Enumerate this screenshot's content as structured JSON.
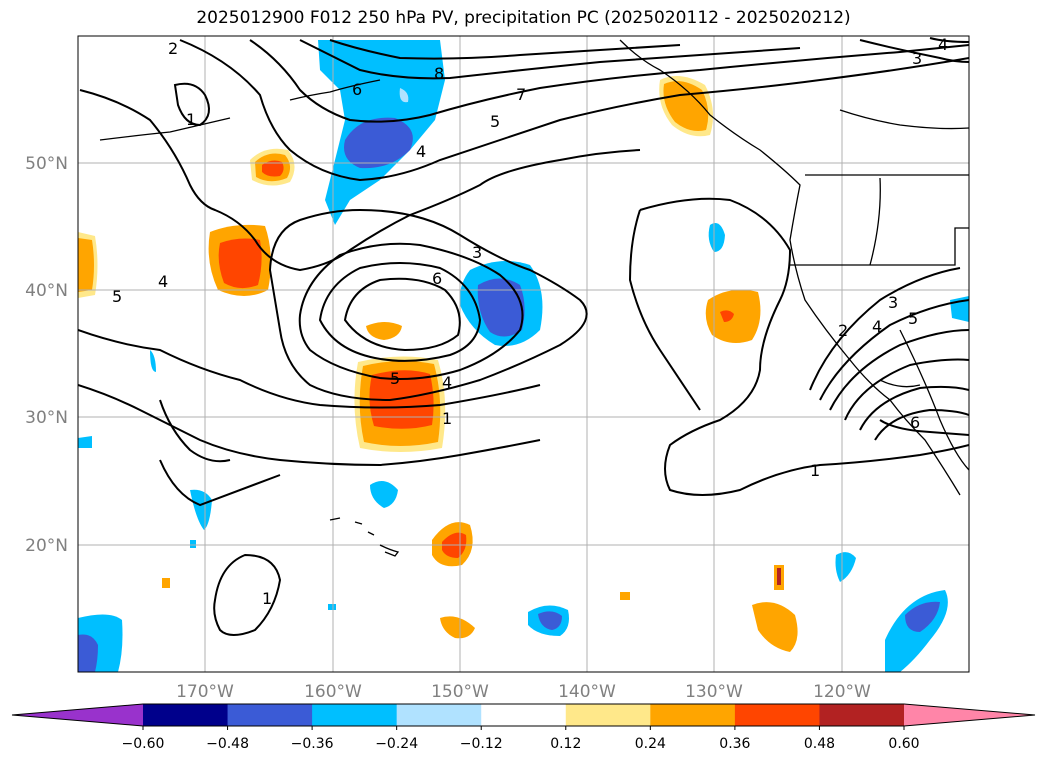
{
  "title": "2025012900 F012 250 hPa PV, precipitation PC (2025020112 - 2025020212)",
  "lat_labels": [
    "50°N",
    "40°N",
    "30°N",
    "20°N"
  ],
  "lon_labels": [
    "170°W",
    "160°W",
    "150°W",
    "140°W",
    "130°W",
    "120°W"
  ],
  "colorbar": {
    "ticks": [
      "−0.60",
      "−0.48",
      "−0.36",
      "−0.24",
      "−0.12",
      "0.12",
      "0.24",
      "0.36",
      "0.48",
      "0.60"
    ],
    "colors": [
      "#9932cc",
      "#00008b",
      "#3b5bd6",
      "#00bfff",
      "#b0e2ff",
      "#ffffff",
      "#ffe88a",
      "#ffa500",
      "#ff4500",
      "#b22222",
      "#ff85a8"
    ]
  },
  "contour_labels": [
    "2",
    "1",
    "4",
    "5",
    "6",
    "8",
    "7",
    "5",
    "4",
    "3",
    "6",
    "4",
    "5",
    "1",
    "3",
    "4",
    "2",
    "4",
    "3",
    "5",
    "6",
    "1",
    "1"
  ]
}
